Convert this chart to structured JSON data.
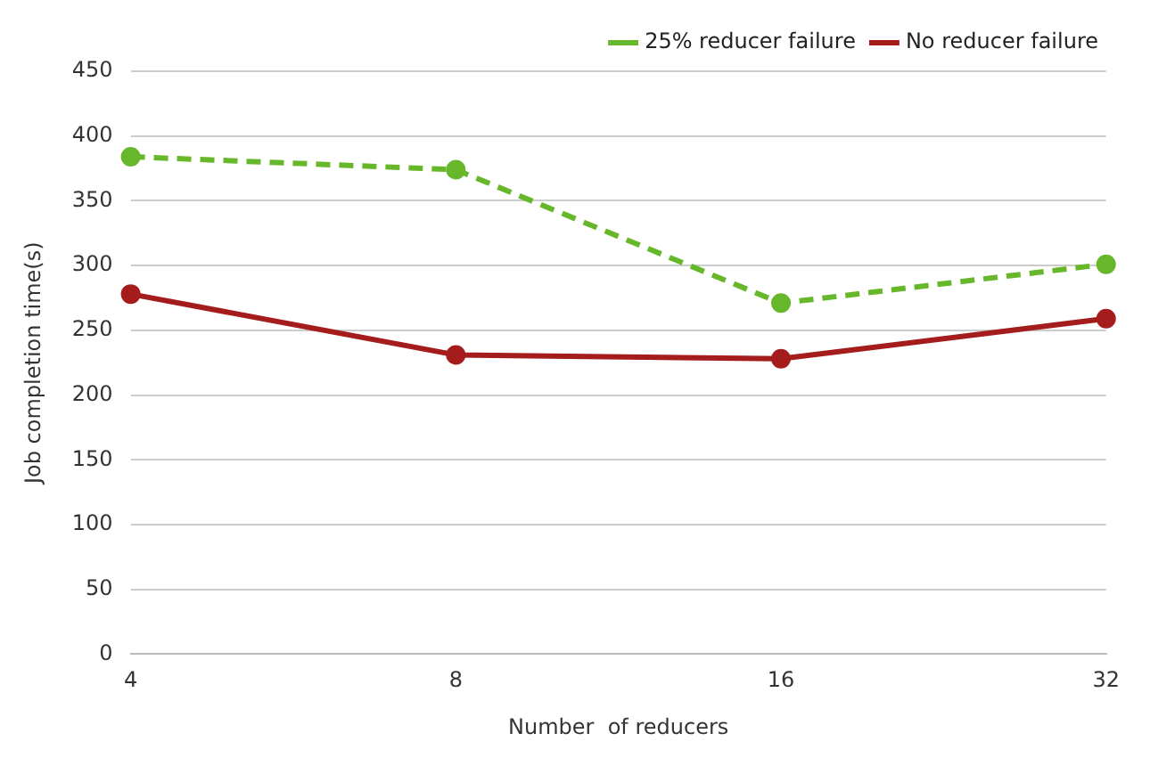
{
  "chart_data": {
    "type": "line",
    "xlabel": "Number  of reducers",
    "ylabel": "Job completion time(s)",
    "categories": [
      "4",
      "8",
      "16",
      "32"
    ],
    "series": [
      {
        "name": "25% reducer failure",
        "color": "#66b82a",
        "values": [
          384,
          374,
          271,
          301
        ],
        "line_style": "dashed"
      },
      {
        "name": "No reducer failure",
        "color": "#a51c1c",
        "values": [
          278,
          231,
          228,
          259
        ],
        "line_style": "solid"
      }
    ],
    "ylim": [
      0,
      450
    ],
    "yticks": [
      0,
      50,
      100,
      150,
      200,
      250,
      300,
      350,
      400,
      450
    ],
    "grid": "y",
    "legend": "top right",
    "marker": "circle"
  }
}
